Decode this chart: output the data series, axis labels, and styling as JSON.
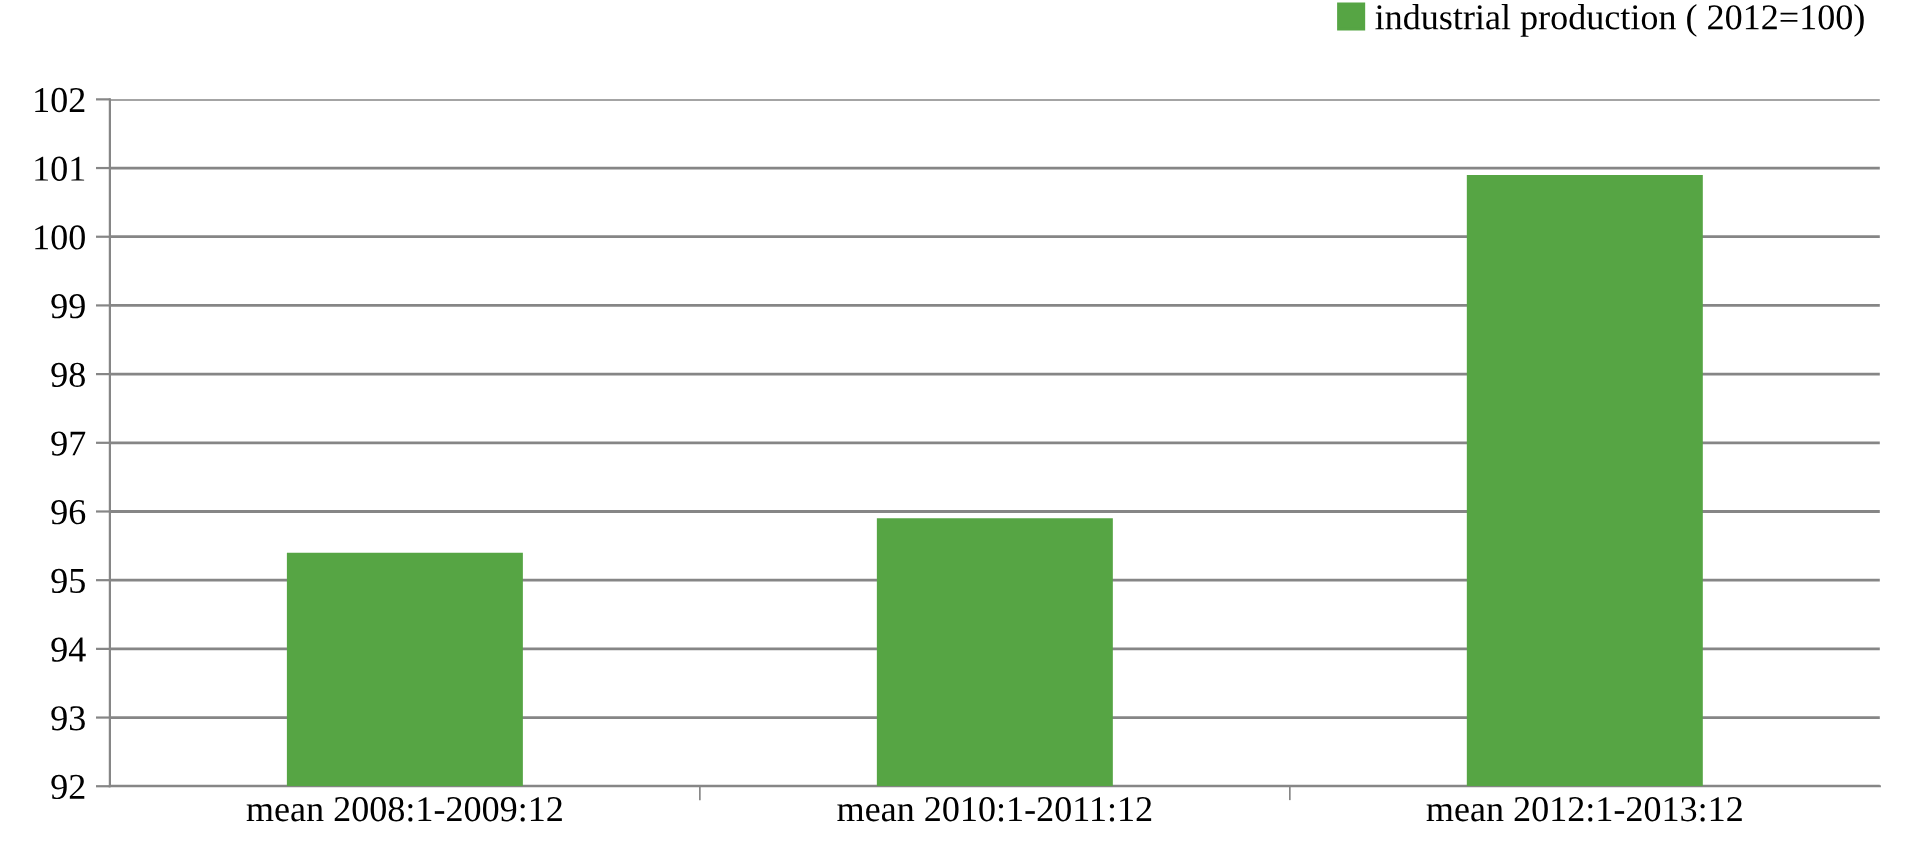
{
  "chart_data": {
    "type": "bar",
    "categories": [
      "mean 2008:1-2009:12",
      "mean 2010:1-2011:12",
      "mean 2012:1-2013:12"
    ],
    "series": [
      {
        "name": "industrial production ( 2012=100)",
        "color": "#56a544",
        "values": [
          95.4,
          95.9,
          100.9
        ]
      }
    ],
    "ylim": [
      92,
      102
    ],
    "yticks": [
      92,
      93,
      94,
      95,
      96,
      97,
      98,
      99,
      100,
      101,
      102
    ],
    "grid": "y",
    "legend": "top right"
  }
}
